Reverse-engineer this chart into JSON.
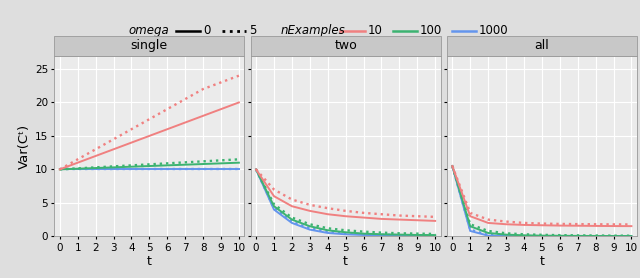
{
  "panels": [
    "single",
    "two",
    "all"
  ],
  "t": [
    0,
    1,
    2,
    3,
    4,
    5,
    6,
    7,
    8,
    9,
    10
  ],
  "color_10": "#F08080",
  "color_100": "#3CB371",
  "color_1000": "#6495ED",
  "single": {
    "n10_omega0": [
      10.0,
      11.0,
      12.0,
      13.0,
      14.0,
      15.0,
      16.0,
      17.0,
      18.0,
      19.0,
      20.0
    ],
    "n10_omega5": [
      10.0,
      11.5,
      13.0,
      14.5,
      16.0,
      17.5,
      19.0,
      20.5,
      22.0,
      23.0,
      24.0
    ],
    "n100_omega0": [
      10.0,
      10.1,
      10.2,
      10.3,
      10.4,
      10.5,
      10.6,
      10.7,
      10.8,
      10.9,
      11.0
    ],
    "n100_omega5": [
      10.0,
      10.15,
      10.3,
      10.45,
      10.6,
      10.75,
      10.9,
      11.05,
      11.2,
      11.35,
      11.5
    ],
    "n1000_omega0": [
      10.0,
      10.0,
      10.0,
      10.0,
      10.0,
      10.0,
      10.0,
      10.0,
      10.0,
      10.0,
      10.0
    ],
    "n1000_omega5": [
      10.0,
      10.0,
      10.0,
      10.0,
      10.0,
      10.0,
      10.0,
      10.0,
      10.0,
      10.0,
      10.0
    ]
  },
  "two": {
    "n10_omega0": [
      10.0,
      6.0,
      4.5,
      3.8,
      3.3,
      3.0,
      2.8,
      2.6,
      2.5,
      2.4,
      2.3
    ],
    "n10_omega5": [
      10.0,
      7.0,
      5.5,
      4.7,
      4.2,
      3.8,
      3.5,
      3.3,
      3.1,
      3.0,
      2.9
    ],
    "n100_omega0": [
      10.0,
      4.5,
      2.5,
      1.5,
      0.9,
      0.6,
      0.4,
      0.3,
      0.25,
      0.2,
      0.18
    ],
    "n100_omega5": [
      10.0,
      4.8,
      2.8,
      1.8,
      1.2,
      0.9,
      0.7,
      0.55,
      0.45,
      0.4,
      0.35
    ],
    "n1000_omega0": [
      10.0,
      4.0,
      2.0,
      1.0,
      0.5,
      0.3,
      0.2,
      0.15,
      0.1,
      0.08,
      0.06
    ],
    "n1000_omega5": [
      10.0,
      4.2,
      2.2,
      1.2,
      0.7,
      0.45,
      0.32,
      0.24,
      0.18,
      0.14,
      0.11
    ]
  },
  "all": {
    "n10_omega0": [
      10.5,
      3.0,
      2.0,
      1.8,
      1.7,
      1.65,
      1.6,
      1.58,
      1.55,
      1.53,
      1.52
    ],
    "n10_omega5": [
      10.5,
      3.5,
      2.5,
      2.2,
      2.0,
      1.9,
      1.85,
      1.82,
      1.8,
      1.78,
      1.77
    ],
    "n100_omega0": [
      10.5,
      1.5,
      0.5,
      0.25,
      0.15,
      0.1,
      0.08,
      0.06,
      0.05,
      0.04,
      0.04
    ],
    "n100_omega5": [
      10.5,
      1.8,
      0.8,
      0.45,
      0.3,
      0.22,
      0.17,
      0.14,
      0.12,
      0.1,
      0.09
    ],
    "n1000_omega0": [
      10.5,
      0.8,
      0.1,
      0.04,
      0.02,
      0.01,
      0.008,
      0.006,
      0.005,
      0.004,
      0.004
    ],
    "n1000_omega5": [
      10.5,
      1.0,
      0.2,
      0.08,
      0.04,
      0.02,
      0.015,
      0.012,
      0.01,
      0.009,
      0.008
    ]
  },
  "ylim": [
    0,
    27
  ],
  "yticks": [
    0,
    5,
    10,
    15,
    20,
    25
  ],
  "xlabel": "t",
  "ylabel": "Var(Cᵗ)",
  "fig_bg": "#DEDEDE",
  "panel_bg": "#EBEBEB",
  "strip_bg": "#C8C8C8",
  "grid_color": "#FFFFFF"
}
